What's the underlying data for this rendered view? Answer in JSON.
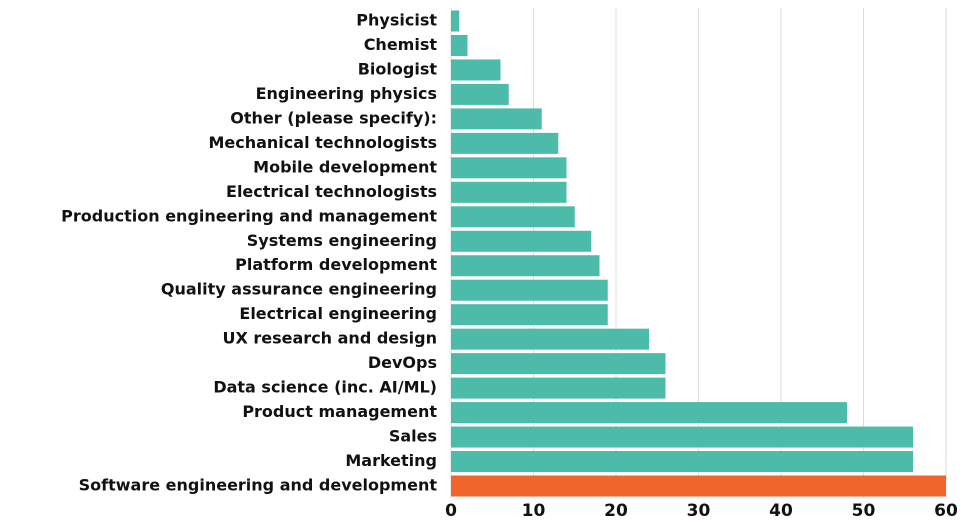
{
  "chart_data": {
    "type": "barh",
    "categories": [
      "Physicist",
      "Chemist",
      "Biologist",
      "Engineering physics",
      "Other (please specify):",
      "Mechanical technologists",
      "Mobile development",
      "Electrical technologists",
      "Production engineering and management",
      "Systems engineering",
      "Platform development",
      "Quality assurance engineering",
      "Electrical engineering",
      "UX research and design",
      "DevOps",
      "Data science (inc. AI/ML)",
      "Product management",
      "Sales",
      "Marketing",
      "Software engineering and development"
    ],
    "values": [
      1,
      2,
      6,
      7,
      11,
      13,
      14,
      14,
      15,
      17,
      18,
      19,
      19,
      24,
      26,
      26,
      48,
      56,
      56,
      60
    ],
    "colors": [
      "#4dbba9",
      "#4dbba9",
      "#4dbba9",
      "#4dbba9",
      "#4dbba9",
      "#4dbba9",
      "#4dbba9",
      "#4dbba9",
      "#4dbba9",
      "#4dbba9",
      "#4dbba9",
      "#4dbba9",
      "#4dbba9",
      "#4dbba9",
      "#4dbba9",
      "#4dbba9",
      "#4dbba9",
      "#4dbba9",
      "#4dbba9",
      "#f0652a"
    ],
    "xlim": [
      0,
      60
    ],
    "xticks": [
      0,
      10,
      20,
      30,
      40,
      50,
      60
    ],
    "grid": true
  }
}
